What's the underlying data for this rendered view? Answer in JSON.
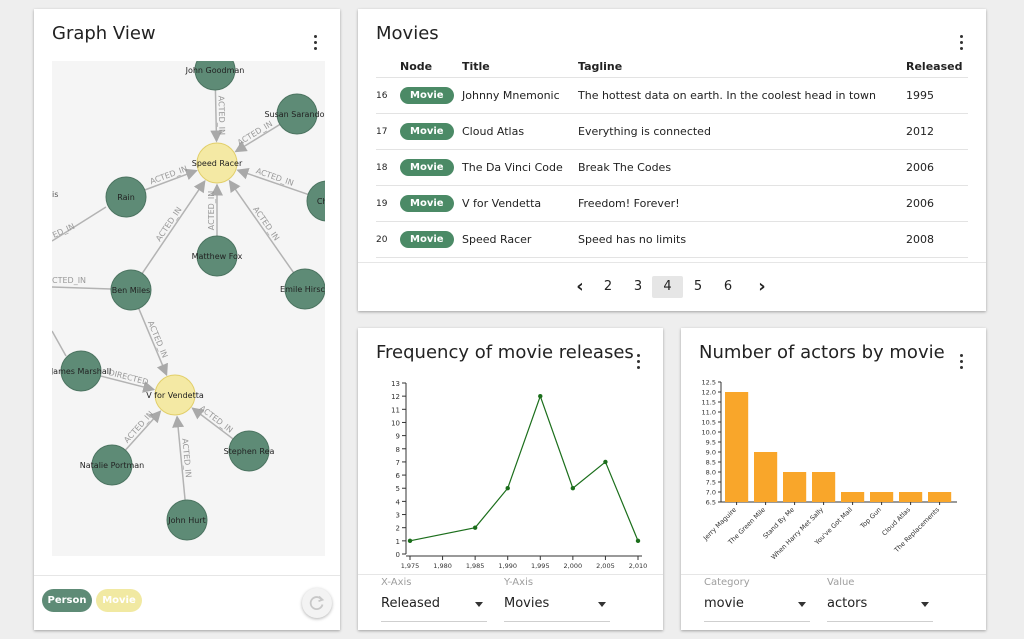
{
  "graph": {
    "title": "Graph View",
    "legend": [
      {
        "label": "Person",
        "color": "#5e8b76"
      },
      {
        "label": "Movie",
        "color": "#f1e9a2"
      }
    ],
    "nodes": [
      {
        "id": "goodman",
        "label": "John Goodman",
        "type": "Person"
      },
      {
        "id": "sarandon",
        "label": "Susan Sarandon",
        "type": "Person"
      },
      {
        "id": "speedracer",
        "label": "Speed Racer",
        "type": "Movie"
      },
      {
        "id": "rain",
        "label": "Rain",
        "type": "Person"
      },
      {
        "id": "christina",
        "label": "Chris",
        "type": "Person"
      },
      {
        "id": "matthew",
        "label": "Matthew Fox",
        "type": "Person"
      },
      {
        "id": "emile",
        "label": "Emile Hirsch",
        "type": "Person"
      },
      {
        "id": "benmiles",
        "label": "Ben Miles",
        "type": "Person"
      },
      {
        "id": "marshall",
        "label": "James Marshall",
        "type": "Person"
      },
      {
        "id": "vendetta",
        "label": "V for Vendetta",
        "type": "Movie"
      },
      {
        "id": "stephen",
        "label": "Stephen Rea",
        "type": "Person"
      },
      {
        "id": "natalie",
        "label": "Natalie Portman",
        "type": "Person"
      },
      {
        "id": "hurt",
        "label": "John Hurt",
        "type": "Person"
      }
    ],
    "edges": [
      {
        "from": "goodman",
        "to": "speedracer",
        "label": "ACTED_IN"
      },
      {
        "from": "sarandon",
        "to": "speedracer",
        "label": "ACTED_IN"
      },
      {
        "from": "rain",
        "to": "speedracer",
        "label": "ACTED_IN"
      },
      {
        "from": "christina",
        "to": "speedracer",
        "label": "ACTED_IN"
      },
      {
        "from": "matthew",
        "to": "speedracer",
        "label": "ACTED_IN"
      },
      {
        "from": "emile",
        "to": "speedracer",
        "label": "ACTED_IN"
      },
      {
        "from": "benmiles",
        "to": "speedracer",
        "label": "ACTED_IN"
      },
      {
        "from": "benmiles",
        "to": "vendetta",
        "label": "ACTED_IN"
      },
      {
        "from": "marshall",
        "to": "vendetta",
        "label": "DIRECTED"
      },
      {
        "from": "stephen",
        "to": "vendetta",
        "label": "ACTED_IN"
      },
      {
        "from": "natalie",
        "to": "vendetta",
        "label": "ACTED_IN"
      },
      {
        "from": "hurt",
        "to": "vendetta",
        "label": "ACTED_IN"
      }
    ],
    "partial_labels": [
      "is",
      "ED_IN",
      "CTED_IN"
    ]
  },
  "movies": {
    "title": "Movies",
    "columns": [
      "Node",
      "Title",
      "Tagline",
      "Released"
    ],
    "rows": [
      {
        "num": "16",
        "node": "Movie",
        "title": "Johnny Mnemonic",
        "tagline": "The hottest data on earth. In the coolest head in town",
        "released": "1995"
      },
      {
        "num": "17",
        "node": "Movie",
        "title": "Cloud Atlas",
        "tagline": "Everything is connected",
        "released": "2012"
      },
      {
        "num": "18",
        "node": "Movie",
        "title": "The Da Vinci Code",
        "tagline": "Break The Codes",
        "released": "2006"
      },
      {
        "num": "19",
        "node": "Movie",
        "title": "V for Vendetta",
        "tagline": "Freedom! Forever!",
        "released": "2006"
      },
      {
        "num": "20",
        "node": "Movie",
        "title": "Speed Racer",
        "tagline": "Speed has no limits",
        "released": "2008"
      }
    ],
    "pagination": {
      "prev": "‹",
      "next": "›",
      "pages": [
        "2",
        "3",
        "4",
        "5",
        "6"
      ],
      "current": "4"
    }
  },
  "frequency": {
    "title": "Frequency of movie releases",
    "x_axis_label": "X-Axis",
    "x_axis_value": "Released",
    "y_axis_label": "Y-Axis",
    "y_axis_value": "Movies"
  },
  "actors": {
    "title": "Number of actors by movie",
    "category_label": "Category",
    "category_value": "movie",
    "value_label": "Value",
    "value_value": "actors"
  },
  "chart_data": [
    {
      "type": "line",
      "title": "Frequency of movie releases",
      "x": [
        1975,
        1985,
        1990,
        1995,
        2000,
        2005,
        2010
      ],
      "y": [
        1,
        2,
        5,
        12,
        5,
        7,
        1
      ],
      "x_ticks": [
        "1,975",
        "1,980",
        "1,985",
        "1,990",
        "1,995",
        "2,000",
        "2,005",
        "2,010"
      ],
      "xlim": [
        1975,
        2010
      ],
      "ylim": [
        0,
        13
      ],
      "y_ticks": [
        "0",
        "1",
        "2",
        "3",
        "4",
        "5",
        "6",
        "7",
        "8",
        "9",
        "10",
        "11",
        "12",
        "13"
      ],
      "color": "#1b6e1b",
      "grid": false
    },
    {
      "type": "bar",
      "title": "Number of actors by movie",
      "categories": [
        "Jerry Maguire",
        "The Green Mile",
        "Stand By Me",
        "When Harry Met Sally",
        "You've Got Mail",
        "Top Gun",
        "Cloud Atlas",
        "The Replacements"
      ],
      "values": [
        12.0,
        9.0,
        8.0,
        8.0,
        7.0,
        7.0,
        7.0,
        7.0
      ],
      "ylim": [
        6.5,
        12.5
      ],
      "y_ticks": [
        "6.5",
        "7.0",
        "7.5",
        "8.0",
        "8.5",
        "9.0",
        "9.5",
        "10.0",
        "10.5",
        "11.0",
        "11.5",
        "12.0",
        "12.5"
      ],
      "color": "#f9a62a",
      "grid": false
    }
  ]
}
